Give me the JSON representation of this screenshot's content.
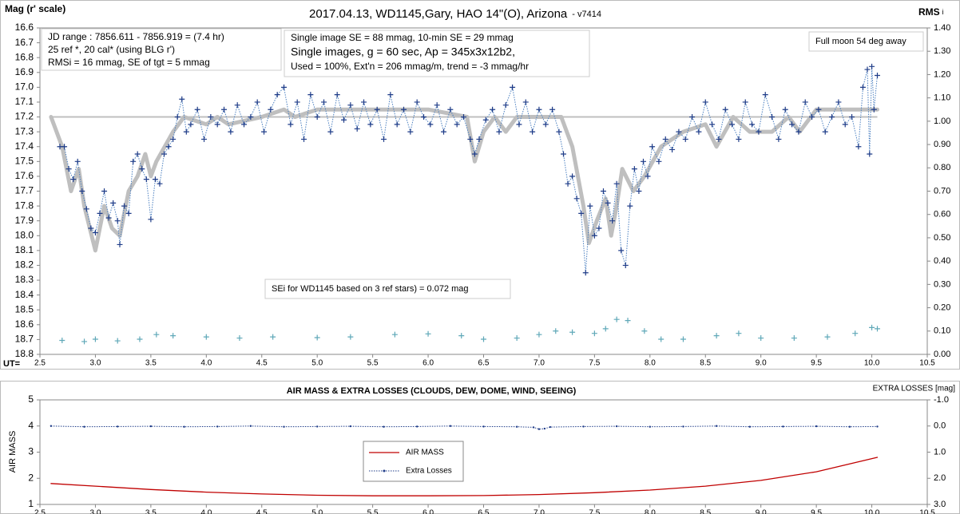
{
  "chart_data": [
    {
      "type": "line",
      "title": "2017.04.13,  WD1145,Gary, HAO  14\"(O), Arizona",
      "title_suffix": "- v7414",
      "y_label": "Mag (r' scale)",
      "y2_label": "RMS",
      "y2_label_sub": "i",
      "x_prefix": "UT=",
      "xlim": [
        2.5,
        10.5
      ],
      "xticks": [
        2.5,
        {
          "value": 3,
          "label": "3.0"
        },
        3.5,
        {
          "value": 4,
          "label": "4.0"
        },
        4.5,
        {
          "value": 5,
          "label": "5.0"
        },
        5.5,
        {
          "value": 6,
          "label": "6.0"
        },
        6.5,
        {
          "value": 7,
          "label": "7.0"
        },
        7.5,
        {
          "value": 8,
          "label": "8.0"
        },
        8.5,
        {
          "value": 9,
          "label": "9.0"
        },
        9.5,
        {
          "value": 10,
          "label": "10.0"
        },
        10.5
      ],
      "ylim": [
        16.6,
        18.8
      ],
      "y_inverted": true,
      "yticks": [
        16.6,
        16.7,
        16.8,
        16.9,
        {
          "value": 17,
          "label": "17.0"
        },
        17.1,
        17.2,
        17.3,
        17.4,
        17.5,
        17.6,
        17.7,
        17.8,
        17.9,
        {
          "value": 18,
          "label": "18.0"
        },
        18.1,
        18.2,
        18.3,
        18.4,
        18.5,
        18.6,
        18.7,
        18.8
      ],
      "y2lim": [
        0,
        1.4
      ],
      "y2_inverted": false,
      "y2ticks": [
        {
          "value": 0,
          "label": "0.00"
        },
        {
          "value": 0.1,
          "label": "0.10"
        },
        {
          "value": 0.2,
          "label": "0.20"
        },
        {
          "value": 0.3,
          "label": "0.30"
        },
        {
          "value": 0.4,
          "label": "0.40"
        },
        {
          "value": 0.5,
          "label": "0.50"
        },
        {
          "value": 0.6,
          "label": "0.60"
        },
        {
          "value": 0.7,
          "label": "0.70"
        },
        {
          "value": 0.8,
          "label": "0.80"
        },
        {
          "value": 0.9,
          "label": "0.90"
        },
        {
          "value": 1,
          "label": "1.00"
        },
        {
          "value": 1.1,
          "label": "1.10"
        },
        {
          "value": 1.2,
          "label": "1.20"
        },
        {
          "value": 1.3,
          "label": "1.30"
        },
        {
          "value": 1.4,
          "label": "1.40"
        }
      ],
      "annotations": [
        {
          "lines": [
            "JD range  : 7856.611 - 7856.919  = (7.4 hr)",
            "25 ref *, 20 cal* (using BLG r')",
            "RMSi = 16 mmag, SE of tgt = 5 mmag"
          ]
        },
        {
          "lines": [
            "Single image SE = 88 mmag, 10-min SE = 29 mmag",
            "Single images, g = 60 sec, Ap = 345x3x12b2,",
            "Used = 100%, Ext'n = 206  mmag/m, trend = -3 mmag/hr"
          ]
        },
        {
          "lines": [
            "Full moon 54 deg away"
          ]
        },
        {
          "lines": [
            "SEi for WD1145 based on 3 ref stars) = 0.072 mag"
          ]
        }
      ],
      "series": [
        {
          "style": "line",
          "color": "#bfbfbf",
          "x": [
            2.6,
            2.7,
            2.78,
            2.85,
            2.9,
            3.0,
            3.08,
            3.15,
            3.22,
            3.3,
            3.38,
            3.45,
            3.5,
            3.55,
            3.7,
            3.8,
            4.0,
            4.1,
            4.2,
            4.5,
            4.7,
            4.8,
            5.0,
            5.3,
            6.0,
            6.35,
            6.42,
            6.5,
            6.6,
            6.7,
            6.8,
            7.2,
            7.3,
            7.4,
            7.45,
            7.52,
            7.6,
            7.65,
            7.7,
            7.75,
            7.85,
            7.95,
            8.1,
            8.3,
            8.5,
            8.6,
            8.75,
            8.9,
            9.1,
            9.25,
            9.35,
            9.5,
            10.05
          ],
          "values": [
            17.2,
            17.4,
            17.7,
            17.55,
            17.8,
            18.1,
            17.8,
            17.95,
            18.0,
            17.7,
            17.6,
            17.45,
            17.6,
            17.5,
            17.3,
            17.2,
            17.25,
            17.2,
            17.25,
            17.2,
            17.15,
            17.2,
            17.15,
            17.15,
            17.15,
            17.2,
            17.5,
            17.3,
            17.2,
            17.3,
            17.2,
            17.2,
            17.4,
            17.8,
            18.05,
            17.9,
            17.75,
            18.0,
            17.8,
            17.55,
            17.7,
            17.6,
            17.4,
            17.3,
            17.25,
            17.4,
            17.2,
            17.3,
            17.3,
            17.2,
            17.3,
            17.15,
            17.15
          ]
        },
        {
          "style": "cross-dotted",
          "color": "#1f3c88",
          "x": [
            2.68,
            2.72,
            2.76,
            2.8,
            2.84,
            2.88,
            2.92,
            2.96,
            3.0,
            3.04,
            3.08,
            3.12,
            3.16,
            3.2,
            3.22,
            3.26,
            3.3,
            3.34,
            3.38,
            3.42,
            3.46,
            3.5,
            3.54,
            3.58,
            3.62,
            3.66,
            3.7,
            3.74,
            3.78,
            3.82,
            3.86,
            3.92,
            3.98,
            4.04,
            4.1,
            4.16,
            4.22,
            4.28,
            4.34,
            4.4,
            4.46,
            4.52,
            4.58,
            4.64,
            4.7,
            4.76,
            4.82,
            4.88,
            4.94,
            5.0,
            5.06,
            5.12,
            5.18,
            5.24,
            5.3,
            5.36,
            5.42,
            5.48,
            5.54,
            5.6,
            5.66,
            5.72,
            5.78,
            5.84,
            5.9,
            5.96,
            6.02,
            6.08,
            6.14,
            6.2,
            6.26,
            6.32,
            6.38,
            6.42,
            6.46,
            6.52,
            6.58,
            6.64,
            6.7,
            6.76,
            6.82,
            6.88,
            6.94,
            7.0,
            7.06,
            7.12,
            7.18,
            7.22,
            7.26,
            7.3,
            7.34,
            7.38,
            7.42,
            7.46,
            7.5,
            7.54,
            7.58,
            7.62,
            7.66,
            7.7,
            7.74,
            7.78,
            7.82,
            7.86,
            7.9,
            7.94,
            7.98,
            8.02,
            8.08,
            8.14,
            8.2,
            8.26,
            8.32,
            8.38,
            8.44,
            8.5,
            8.56,
            8.62,
            8.68,
            8.74,
            8.8,
            8.86,
            8.92,
            8.98,
            9.04,
            9.1,
            9.16,
            9.22,
            9.28,
            9.34,
            9.4,
            9.46,
            9.52,
            9.58,
            9.64,
            9.7,
            9.76,
            9.82,
            9.88,
            9.92,
            9.96,
            9.98,
            10.0,
            10.02,
            10.05
          ],
          "values": [
            17.4,
            17.4,
            17.55,
            17.62,
            17.5,
            17.7,
            17.82,
            17.95,
            17.98,
            17.85,
            17.7,
            17.88,
            17.78,
            17.9,
            18.06,
            17.8,
            17.85,
            17.5,
            17.45,
            17.55,
            17.62,
            17.89,
            17.62,
            17.65,
            17.45,
            17.4,
            17.35,
            17.2,
            17.08,
            17.3,
            17.25,
            17.15,
            17.35,
            17.2,
            17.25,
            17.15,
            17.3,
            17.12,
            17.25,
            17.2,
            17.1,
            17.3,
            17.15,
            17.05,
            17.0,
            17.25,
            17.1,
            17.35,
            17.05,
            17.2,
            17.1,
            17.3,
            17.05,
            17.22,
            17.12,
            17.28,
            17.1,
            17.25,
            17.15,
            17.35,
            17.05,
            17.25,
            17.15,
            17.3,
            17.1,
            17.2,
            17.25,
            17.12,
            17.3,
            17.15,
            17.25,
            17.2,
            17.35,
            17.45,
            17.35,
            17.22,
            17.15,
            17.3,
            17.12,
            17.0,
            17.25,
            17.1,
            17.3,
            17.15,
            17.25,
            17.15,
            17.3,
            17.45,
            17.65,
            17.6,
            17.75,
            17.85,
            18.25,
            17.8,
            18.0,
            17.95,
            17.7,
            17.78,
            17.9,
            17.65,
            18.1,
            18.2,
            17.8,
            17.55,
            17.7,
            17.5,
            17.6,
            17.4,
            17.5,
            17.35,
            17.42,
            17.3,
            17.35,
            17.2,
            17.3,
            17.1,
            17.25,
            17.35,
            17.15,
            17.25,
            17.35,
            17.1,
            17.25,
            17.3,
            17.05,
            17.2,
            17.35,
            17.15,
            17.25,
            17.3,
            17.1,
            17.2,
            17.15,
            17.3,
            17.2,
            17.1,
            17.25,
            17.2,
            17.4,
            17.0,
            16.88,
            17.45,
            16.86,
            17.15,
            16.92
          ]
        },
        {
          "style": "cross",
          "color": "#5fa8b8",
          "axis": "y2",
          "x": [
            2.7,
            2.9,
            3.0,
            3.2,
            3.4,
            3.55,
            3.7,
            4.0,
            4.3,
            4.6,
            5.0,
            5.3,
            5.7,
            6.0,
            6.3,
            6.5,
            6.8,
            7.0,
            7.15,
            7.3,
            7.5,
            7.6,
            7.7,
            7.8,
            7.95,
            8.1,
            8.3,
            8.6,
            8.8,
            9.0,
            9.3,
            9.6,
            9.85,
            10.0,
            10.05
          ],
          "values": [
            0.06,
            0.055,
            0.065,
            0.058,
            0.065,
            0.085,
            0.08,
            0.075,
            0.07,
            0.075,
            0.072,
            0.075,
            0.085,
            0.088,
            0.08,
            0.065,
            0.07,
            0.085,
            0.1,
            0.095,
            0.09,
            0.11,
            0.15,
            0.145,
            0.1,
            0.065,
            0.065,
            0.08,
            0.09,
            0.07,
            0.07,
            0.075,
            0.09,
            0.115,
            0.11
          ]
        }
      ]
    },
    {
      "type": "line",
      "title": "AIR MASS & EXTRA LOSSES (CLOUDS, DEW, DOME, WIND, SEEING)",
      "y_label": "AIR MASS",
      "y2_label": "EXTRA LOSSES [mag]",
      "xlim": [
        2.5,
        10.5
      ],
      "xticks": [
        2.5,
        {
          "value": 3,
          "label": "3.0"
        },
        3.5,
        {
          "value": 4,
          "label": "4.0"
        },
        4.5,
        {
          "value": 5,
          "label": "5.0"
        },
        5.5,
        {
          "value": 6,
          "label": "6.0"
        },
        6.5,
        {
          "value": 7,
          "label": "7.0"
        },
        7.5,
        {
          "value": 8,
          "label": "8.0"
        },
        8.5,
        {
          "value": 9,
          "label": "9.0"
        },
        9.5,
        {
          "value": 10,
          "label": "10.0"
        },
        10.5
      ],
      "ylim": [
        1,
        5
      ],
      "y_inverted": false,
      "yticks": [
        1,
        2,
        3,
        4,
        5
      ],
      "y2lim": [
        -1,
        3
      ],
      "y2_inverted": true,
      "y2ticks": [
        {
          "value": -1,
          "label": "-1.0"
        },
        {
          "value": 0,
          "label": "0.0"
        },
        {
          "value": 1,
          "label": "1.0"
        },
        {
          "value": 2,
          "label": "2.0"
        },
        {
          "value": 3,
          "label": "3.0"
        }
      ],
      "series": [
        {
          "name": "AIR MASS",
          "style": "line",
          "color": "#c00000",
          "x": [
            2.6,
            3.0,
            3.5,
            4.0,
            4.5,
            5.0,
            5.5,
            6.0,
            6.5,
            7.0,
            7.5,
            8.0,
            8.5,
            9.0,
            9.5,
            10.05
          ],
          "values": [
            1.8,
            1.7,
            1.57,
            1.47,
            1.4,
            1.35,
            1.33,
            1.33,
            1.34,
            1.38,
            1.45,
            1.55,
            1.7,
            1.92,
            2.25,
            2.8
          ]
        },
        {
          "name": "Extra Losses",
          "style": "dot-dotted",
          "color": "#1f3c88",
          "axis": "y2",
          "x": [
            2.6,
            2.9,
            3.2,
            3.5,
            3.8,
            4.1,
            4.4,
            4.7,
            5.0,
            5.3,
            5.6,
            5.9,
            6.2,
            6.5,
            6.8,
            6.95,
            7.0,
            7.05,
            7.1,
            7.4,
            7.7,
            8.0,
            8.3,
            8.6,
            8.9,
            9.2,
            9.5,
            9.8,
            10.05
          ],
          "values": [
            0.0,
            0.03,
            0.02,
            0.01,
            0.03,
            0.02,
            0.0,
            0.03,
            0.02,
            0.01,
            0.03,
            0.02,
            0.0,
            0.02,
            0.03,
            0.05,
            0.12,
            0.1,
            0.04,
            0.02,
            0.01,
            0.03,
            0.02,
            0.0,
            0.03,
            0.02,
            0.01,
            0.03,
            0.02
          ]
        }
      ]
    }
  ]
}
